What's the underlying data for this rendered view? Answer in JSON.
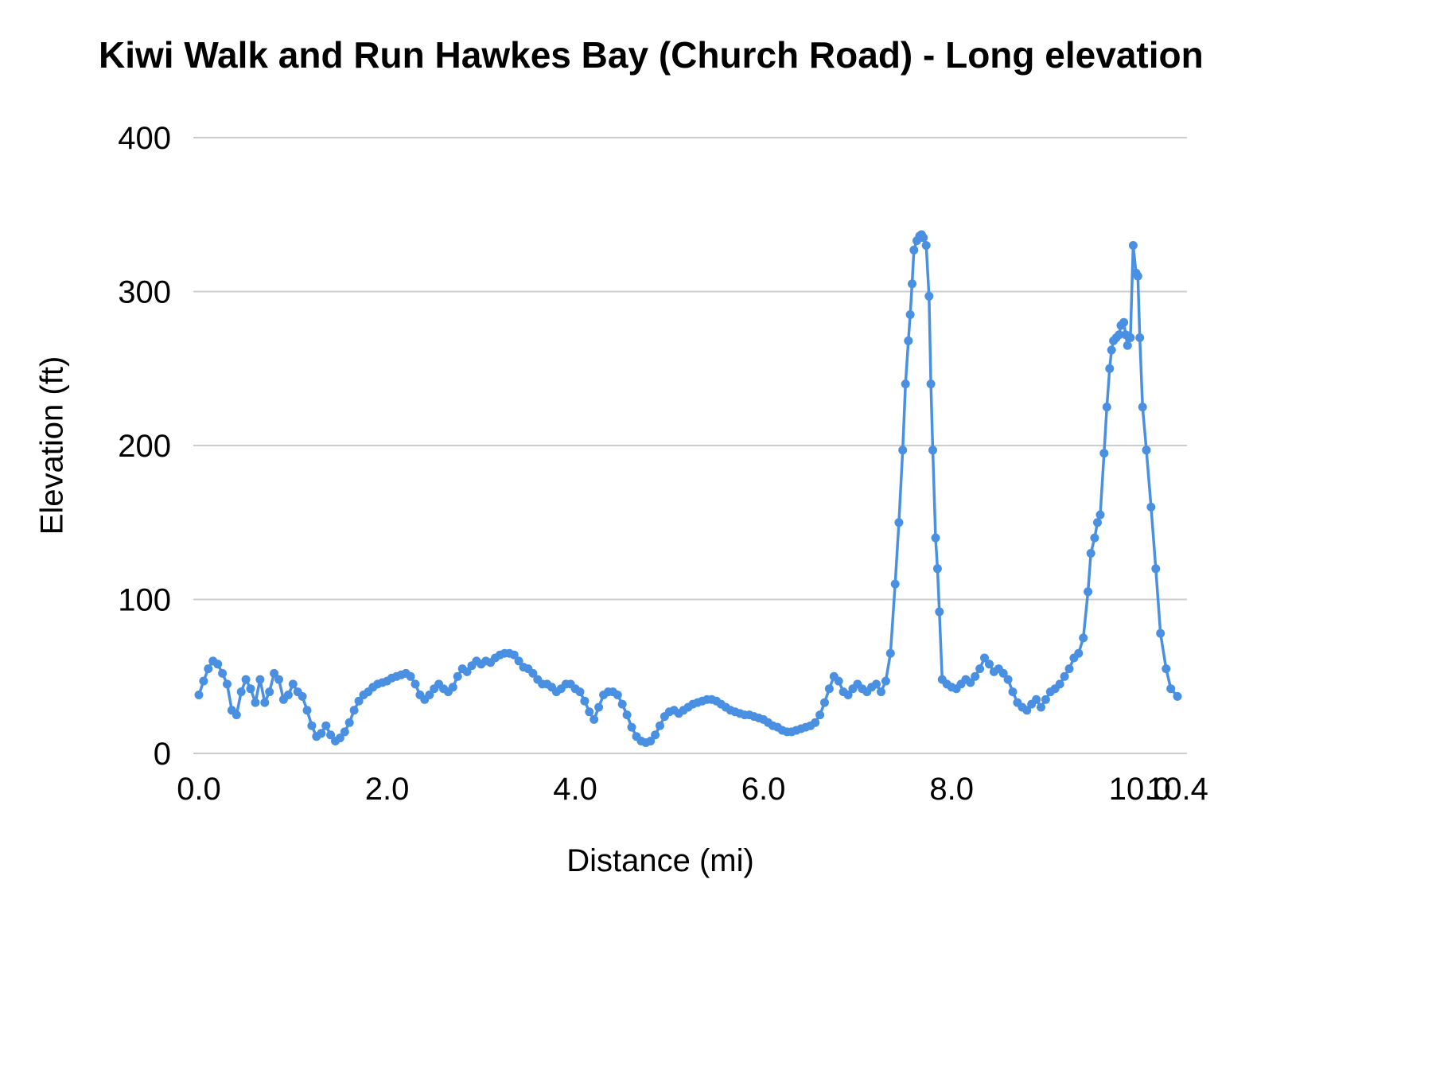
{
  "chart_data": {
    "type": "line",
    "title": "Kiwi Walk and Run Hawkes Bay (Church Road) - Long elevation",
    "xlabel": "Distance (mi)",
    "ylabel": "Elevation (ft)",
    "xlim": [
      0,
      10.4
    ],
    "ylim": [
      0,
      400
    ],
    "y_ticks": [
      0,
      100,
      200,
      300,
      400
    ],
    "x_ticks": [
      0,
      2,
      4,
      6,
      8,
      10,
      10.4
    ],
    "x_tick_labels": [
      "0.0",
      "2.0",
      "4.0",
      "6.0",
      "8.0",
      "10.0",
      "10.4"
    ],
    "grid": true,
    "legend": false,
    "colors": {
      "line": "#4a90e2",
      "grid": "#cccccc",
      "text": "#000000",
      "background": "#ffffff"
    },
    "series": [
      {
        "name": "Elevation",
        "color": "#4a90e2",
        "marker": true,
        "points": [
          [
            0.0,
            38
          ],
          [
            0.05,
            47
          ],
          [
            0.1,
            55
          ],
          [
            0.15,
            60
          ],
          [
            0.2,
            58
          ],
          [
            0.25,
            52
          ],
          [
            0.3,
            45
          ],
          [
            0.35,
            28
          ],
          [
            0.4,
            25
          ],
          [
            0.45,
            40
          ],
          [
            0.5,
            48
          ],
          [
            0.55,
            42
          ],
          [
            0.6,
            33
          ],
          [
            0.65,
            48
          ],
          [
            0.7,
            33
          ],
          [
            0.75,
            40
          ],
          [
            0.8,
            52
          ],
          [
            0.85,
            48
          ],
          [
            0.9,
            35
          ],
          [
            0.95,
            38
          ],
          [
            1.0,
            45
          ],
          [
            1.05,
            40
          ],
          [
            1.1,
            37
          ],
          [
            1.15,
            28
          ],
          [
            1.2,
            18
          ],
          [
            1.25,
            11
          ],
          [
            1.3,
            13
          ],
          [
            1.35,
            18
          ],
          [
            1.4,
            12
          ],
          [
            1.45,
            8
          ],
          [
            1.5,
            10
          ],
          [
            1.55,
            14
          ],
          [
            1.6,
            20
          ],
          [
            1.65,
            28
          ],
          [
            1.7,
            34
          ],
          [
            1.75,
            38
          ],
          [
            1.8,
            40
          ],
          [
            1.85,
            43
          ],
          [
            1.9,
            45
          ],
          [
            1.95,
            46
          ],
          [
            2.0,
            47
          ],
          [
            2.05,
            49
          ],
          [
            2.1,
            50
          ],
          [
            2.15,
            51
          ],
          [
            2.2,
            52
          ],
          [
            2.25,
            50
          ],
          [
            2.3,
            45
          ],
          [
            2.35,
            38
          ],
          [
            2.4,
            35
          ],
          [
            2.45,
            38
          ],
          [
            2.5,
            42
          ],
          [
            2.55,
            45
          ],
          [
            2.6,
            42
          ],
          [
            2.65,
            40
          ],
          [
            2.7,
            43
          ],
          [
            2.75,
            50
          ],
          [
            2.8,
            55
          ],
          [
            2.85,
            53
          ],
          [
            2.9,
            57
          ],
          [
            2.95,
            60
          ],
          [
            3.0,
            58
          ],
          [
            3.05,
            60
          ],
          [
            3.1,
            59
          ],
          [
            3.15,
            62
          ],
          [
            3.2,
            64
          ],
          [
            3.25,
            65
          ],
          [
            3.3,
            65
          ],
          [
            3.35,
            64
          ],
          [
            3.4,
            60
          ],
          [
            3.45,
            56
          ],
          [
            3.5,
            55
          ],
          [
            3.55,
            52
          ],
          [
            3.6,
            48
          ],
          [
            3.65,
            45
          ],
          [
            3.7,
            45
          ],
          [
            3.75,
            43
          ],
          [
            3.8,
            40
          ],
          [
            3.85,
            42
          ],
          [
            3.9,
            45
          ],
          [
            3.95,
            45
          ],
          [
            4.0,
            42
          ],
          [
            4.05,
            40
          ],
          [
            4.1,
            34
          ],
          [
            4.15,
            27
          ],
          [
            4.2,
            22
          ],
          [
            4.25,
            30
          ],
          [
            4.3,
            38
          ],
          [
            4.35,
            40
          ],
          [
            4.4,
            40
          ],
          [
            4.45,
            38
          ],
          [
            4.5,
            32
          ],
          [
            4.55,
            25
          ],
          [
            4.6,
            17
          ],
          [
            4.65,
            11
          ],
          [
            4.7,
            8
          ],
          [
            4.75,
            7
          ],
          [
            4.8,
            8
          ],
          [
            4.85,
            12
          ],
          [
            4.9,
            18
          ],
          [
            4.95,
            24
          ],
          [
            5.0,
            27
          ],
          [
            5.05,
            28
          ],
          [
            5.1,
            26
          ],
          [
            5.15,
            28
          ],
          [
            5.2,
            30
          ],
          [
            5.25,
            32
          ],
          [
            5.3,
            33
          ],
          [
            5.35,
            34
          ],
          [
            5.4,
            35
          ],
          [
            5.45,
            35
          ],
          [
            5.5,
            34
          ],
          [
            5.55,
            32
          ],
          [
            5.6,
            30
          ],
          [
            5.65,
            28
          ],
          [
            5.7,
            27
          ],
          [
            5.75,
            26
          ],
          [
            5.8,
            25
          ],
          [
            5.85,
            25
          ],
          [
            5.9,
            24
          ],
          [
            5.95,
            23
          ],
          [
            6.0,
            22
          ],
          [
            6.05,
            20
          ],
          [
            6.1,
            18
          ],
          [
            6.15,
            17
          ],
          [
            6.2,
            15
          ],
          [
            6.25,
            14
          ],
          [
            6.3,
            14
          ],
          [
            6.35,
            15
          ],
          [
            6.4,
            16
          ],
          [
            6.45,
            17
          ],
          [
            6.5,
            18
          ],
          [
            6.55,
            20
          ],
          [
            6.6,
            25
          ],
          [
            6.65,
            33
          ],
          [
            6.7,
            42
          ],
          [
            6.75,
            50
          ],
          [
            6.8,
            47
          ],
          [
            6.85,
            40
          ],
          [
            6.9,
            38
          ],
          [
            6.95,
            42
          ],
          [
            7.0,
            45
          ],
          [
            7.05,
            42
          ],
          [
            7.1,
            40
          ],
          [
            7.15,
            43
          ],
          [
            7.2,
            45
          ],
          [
            7.25,
            40
          ],
          [
            7.3,
            47
          ],
          [
            7.35,
            65
          ],
          [
            7.4,
            110
          ],
          [
            7.44,
            150
          ],
          [
            7.48,
            197
          ],
          [
            7.51,
            240
          ],
          [
            7.54,
            268
          ],
          [
            7.56,
            285
          ],
          [
            7.58,
            305
          ],
          [
            7.6,
            327
          ],
          [
            7.63,
            333
          ],
          [
            7.66,
            336
          ],
          [
            7.68,
            337
          ],
          [
            7.7,
            335
          ],
          [
            7.73,
            330
          ],
          [
            7.76,
            297
          ],
          [
            7.78,
            240
          ],
          [
            7.8,
            197
          ],
          [
            7.83,
            140
          ],
          [
            7.85,
            120
          ],
          [
            7.87,
            92
          ],
          [
            7.9,
            48
          ],
          [
            7.95,
            45
          ],
          [
            8.0,
            43
          ],
          [
            8.05,
            42
          ],
          [
            8.1,
            45
          ],
          [
            8.15,
            48
          ],
          [
            8.2,
            46
          ],
          [
            8.25,
            50
          ],
          [
            8.3,
            55
          ],
          [
            8.35,
            62
          ],
          [
            8.4,
            58
          ],
          [
            8.45,
            53
          ],
          [
            8.5,
            55
          ],
          [
            8.55,
            52
          ],
          [
            8.6,
            48
          ],
          [
            8.65,
            40
          ],
          [
            8.7,
            33
          ],
          [
            8.75,
            30
          ],
          [
            8.8,
            28
          ],
          [
            8.85,
            32
          ],
          [
            8.9,
            35
          ],
          [
            8.95,
            30
          ],
          [
            9.0,
            35
          ],
          [
            9.05,
            40
          ],
          [
            9.1,
            42
          ],
          [
            9.15,
            45
          ],
          [
            9.2,
            50
          ],
          [
            9.25,
            55
          ],
          [
            9.3,
            62
          ],
          [
            9.35,
            65
          ],
          [
            9.4,
            75
          ],
          [
            9.45,
            105
          ],
          [
            9.48,
            130
          ],
          [
            9.52,
            140
          ],
          [
            9.55,
            150
          ],
          [
            9.58,
            155
          ],
          [
            9.62,
            195
          ],
          [
            9.65,
            225
          ],
          [
            9.68,
            250
          ],
          [
            9.7,
            262
          ],
          [
            9.72,
            268
          ],
          [
            9.75,
            270
          ],
          [
            9.78,
            272
          ],
          [
            9.8,
            278
          ],
          [
            9.83,
            280
          ],
          [
            9.85,
            272
          ],
          [
            9.87,
            265
          ],
          [
            9.9,
            270
          ],
          [
            9.93,
            330
          ],
          [
            9.96,
            312
          ],
          [
            9.98,
            310
          ],
          [
            10.0,
            270
          ],
          [
            10.03,
            225
          ],
          [
            10.07,
            197
          ],
          [
            10.12,
            160
          ],
          [
            10.17,
            120
          ],
          [
            10.22,
            78
          ],
          [
            10.28,
            55
          ],
          [
            10.33,
            42
          ],
          [
            10.4,
            37
          ]
        ]
      }
    ]
  }
}
